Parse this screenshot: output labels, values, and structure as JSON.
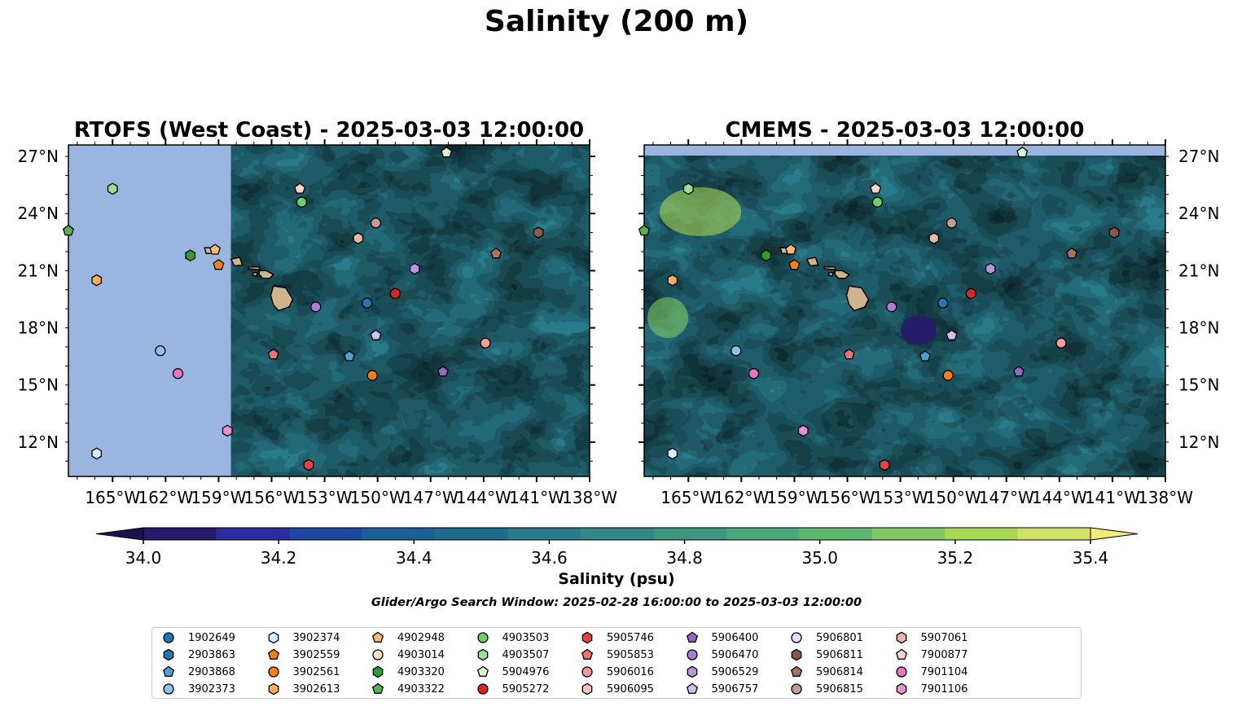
{
  "figure_title": "Salinity (200 m)",
  "colors": {
    "land_mask": "#9ab6e0",
    "hawaii_land": "#d2b48c"
  },
  "chart_data": [
    {
      "type": "heatmap",
      "title": "RTOFS (West Coast) - 2025-03-03 12:00:00",
      "x_ticks": [
        "165°W",
        "162°W",
        "159°W",
        "156°W",
        "153°W",
        "150°W",
        "147°W",
        "144°W",
        "141°W",
        "138°W"
      ],
      "y_ticks": [
        "27°N",
        "24°N",
        "21°N",
        "18°N",
        "15°N",
        "12°N"
      ],
      "xlim": [
        -167.5,
        -138
      ],
      "ylim": [
        10.2,
        27.6
      ],
      "data_coverage_west_edge": -158.3
    },
    {
      "type": "heatmap",
      "title": "CMEMS - 2025-03-03 12:00:00",
      "x_ticks": [
        "165°W",
        "162°W",
        "159°W",
        "156°W",
        "153°W",
        "150°W",
        "147°W",
        "144°W",
        "141°W",
        "138°W"
      ],
      "y_ticks": [
        "27°N",
        "24°N",
        "21°N",
        "18°N",
        "15°N",
        "12°N"
      ],
      "xlim": [
        -167.5,
        -138
      ],
      "ylim": [
        10.2,
        27.6
      ]
    }
  ],
  "colorbar": {
    "label": "Salinity (psu)",
    "min": 34.0,
    "max": 35.4,
    "ticks": [
      "34.0",
      "34.2",
      "34.4",
      "34.6",
      "34.8",
      "35.0",
      "35.2",
      "35.4"
    ],
    "colors": [
      "#281a6e",
      "#2b2a9e",
      "#1e47a0",
      "#1a5f96",
      "#1e6b8e",
      "#297a8a",
      "#338885",
      "#3d9780",
      "#4aa77a",
      "#5db770",
      "#7dc862",
      "#a8d655",
      "#d0e06a"
    ]
  },
  "search_window": "Glider/Argo Search Window: 2025-02-28 16:00:00 to 2025-03-03 12:00:00",
  "floats": [
    {
      "id": "1902649",
      "marker": "circle",
      "color": "#1f77b4",
      "lon": -150.6,
      "lat": 19.3
    },
    {
      "id": "2903863",
      "marker": "hexagon",
      "color": "#1f77b4",
      "lon": null,
      "lat": null
    },
    {
      "id": "2903868",
      "marker": "pentagon",
      "color": "#4ba0d8",
      "lon": -151.6,
      "lat": 16.5
    },
    {
      "id": "3902373",
      "marker": "circle",
      "color": "#8ec3ea",
      "lon": -162.3,
      "lat": 16.8
    },
    {
      "id": "3902374",
      "marker": "hexagon",
      "color": "#d8ecfb",
      "lon": -165.9,
      "lat": 11.4
    },
    {
      "id": "3902559",
      "marker": "pentagon",
      "color": "#ff7f0e",
      "lon": -159.0,
      "lat": 21.3
    },
    {
      "id": "3902561",
      "marker": "circle",
      "color": "#ff7f0e",
      "lon": -150.3,
      "lat": 15.5
    },
    {
      "id": "3902613",
      "marker": "hexagon",
      "color": "#ffab5c",
      "lon": -165.9,
      "lat": 20.5
    },
    {
      "id": "4902948",
      "marker": "pentagon",
      "color": "#f6b97c",
      "lon": -159.2,
      "lat": 22.1
    },
    {
      "id": "4903014",
      "marker": "circle",
      "color": "#ffe1c4",
      "lon": null,
      "lat": null
    },
    {
      "id": "4903320",
      "marker": "hexagon",
      "color": "#2ca02c",
      "lon": -160.6,
      "lat": 21.8
    },
    {
      "id": "4903322",
      "marker": "pentagon",
      "color": "#52b452",
      "lon": -167.5,
      "lat": 23.1
    },
    {
      "id": "4903503",
      "marker": "circle",
      "color": "#6ccf6c",
      "lon": -154.3,
      "lat": 24.6
    },
    {
      "id": "4903507",
      "marker": "hexagon",
      "color": "#98e198",
      "lon": -165.0,
      "lat": 25.3
    },
    {
      "id": "5904976",
      "marker": "pentagon",
      "color": "#d9f7d0",
      "lon": -146.1,
      "lat": 27.2
    },
    {
      "id": "5905272",
      "marker": "circle",
      "color": "#d62728",
      "lon": -149.0,
      "lat": 19.8
    },
    {
      "id": "5905746",
      "marker": "hexagon",
      "color": "#e24444",
      "lon": -153.9,
      "lat": 10.8
    },
    {
      "id": "5905853",
      "marker": "pentagon",
      "color": "#ee7272",
      "lon": -155.9,
      "lat": 16.6
    },
    {
      "id": "5906016",
      "marker": "circle",
      "color": "#f59a9a",
      "lon": -143.9,
      "lat": 17.2
    },
    {
      "id": "5906095",
      "marker": "hexagon",
      "color": "#f8c4c0",
      "lon": null,
      "lat": null
    },
    {
      "id": "5906400",
      "marker": "pentagon",
      "color": "#9467bd",
      "lon": -146.3,
      "lat": 15.7
    },
    {
      "id": "5906470",
      "marker": "circle",
      "color": "#a67fd0",
      "lon": -153.5,
      "lat": 19.1
    },
    {
      "id": "5906529",
      "marker": "hexagon",
      "color": "#b993e0",
      "lon": -147.9,
      "lat": 21.1
    },
    {
      "id": "5906757",
      "marker": "pentagon",
      "color": "#d4bdf3",
      "lon": -150.1,
      "lat": 17.6
    },
    {
      "id": "5906801",
      "marker": "circle",
      "color": "#e9dbfa",
      "lon": null,
      "lat": null
    },
    {
      "id": "5906811",
      "marker": "hexagon",
      "color": "#8c564b",
      "lon": -140.9,
      "lat": 23.0
    },
    {
      "id": "5906814",
      "marker": "pentagon",
      "color": "#a87367",
      "lon": -143.3,
      "lat": 21.9
    },
    {
      "id": "5906815",
      "marker": "circle",
      "color": "#c49c94",
      "lon": -150.1,
      "lat": 23.5
    },
    {
      "id": "5907061",
      "marker": "hexagon",
      "color": "#e4b7ab",
      "lon": -151.1,
      "lat": 22.7
    },
    {
      "id": "7900877",
      "marker": "pentagon",
      "color": "#fbd5c8",
      "lon": -154.4,
      "lat": 25.3
    },
    {
      "id": "7901104",
      "marker": "circle",
      "color": "#e377c2",
      "lon": -161.3,
      "lat": 15.6
    },
    {
      "id": "7901106",
      "marker": "hexagon",
      "color": "#eb8fd3",
      "lon": -158.5,
      "lat": 12.6
    }
  ]
}
